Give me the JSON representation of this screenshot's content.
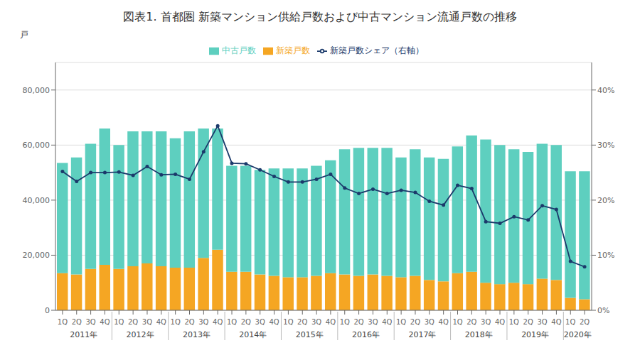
{
  "chart_data": {
    "type": "bar",
    "title": "図表1. 首都圏 新築マンション供給戸数および中古マンション流通戸数の推移",
    "ylabel": "戸",
    "categories": [
      "1Q",
      "2Q",
      "3Q",
      "4Q",
      "1Q",
      "2Q",
      "3Q",
      "4Q",
      "1Q",
      "2Q",
      "3Q",
      "4Q",
      "1Q",
      "2Q",
      "3Q",
      "4Q",
      "1Q",
      "2Q",
      "3Q",
      "4Q",
      "1Q",
      "2Q",
      "3Q",
      "4Q",
      "1Q",
      "2Q",
      "3Q",
      "4Q",
      "1Q",
      "2Q",
      "3Q",
      "4Q",
      "1Q",
      "2Q",
      "3Q",
      "4Q",
      "1Q",
      "2Q"
    ],
    "annotations": [
      "2011年",
      "2012年",
      "2013年",
      "2014年",
      "2015年",
      "2016年",
      "2017年",
      "2018年",
      "2019年",
      "2020年"
    ],
    "series": [
      {
        "name": "新築戸数",
        "type": "bar",
        "color": "#F5A623",
        "values": [
          13500,
          13000,
          15000,
          16500,
          15000,
          16000,
          17000,
          16000,
          15500,
          15500,
          19000,
          22000,
          14000,
          14000,
          13000,
          12500,
          12000,
          12000,
          12500,
          13500,
          13000,
          12500,
          13000,
          12500,
          12000,
          12500,
          11000,
          10500,
          13500,
          14000,
          10000,
          9500,
          10000,
          9500,
          11500,
          11000,
          4500,
          4000
        ]
      },
      {
        "name": "中古戸数",
        "type": "bar",
        "color": "#5ECFBF",
        "values": [
          40000,
          42500,
          45500,
          49500,
          45000,
          49000,
          48000,
          49000,
          47000,
          49500,
          47000,
          44000,
          38500,
          38500,
          38000,
          39000,
          39500,
          39500,
          40000,
          41000,
          45500,
          46500,
          46000,
          46500,
          43500,
          46000,
          44500,
          44500,
          46000,
          49500,
          52000,
          50500,
          48500,
          48000,
          49000,
          49000,
          46000,
          46500
        ]
      },
      {
        "name": "新築戸数シェア（右軸）",
        "type": "line",
        "axis": "y2",
        "marker": "circle",
        "color": "#1B3A6B",
        "values": [
          0.252,
          0.234,
          0.25,
          0.25,
          0.251,
          0.245,
          0.261,
          0.246,
          0.247,
          0.238,
          0.288,
          0.335,
          0.267,
          0.266,
          0.255,
          0.243,
          0.233,
          0.233,
          0.238,
          0.247,
          0.222,
          0.212,
          0.22,
          0.212,
          0.218,
          0.214,
          0.198,
          0.191,
          0.227,
          0.221,
          0.161,
          0.158,
          0.17,
          0.164,
          0.19,
          0.183,
          0.089,
          0.079
        ]
      }
    ],
    "stacked": true,
    "ylim": [
      0,
      90000
    ],
    "yticks": [
      0,
      {
        "value": 20000,
        "label": "20,000"
      },
      {
        "value": 40000,
        "label": "40,000"
      },
      {
        "value": 60000,
        "label": "60,000"
      },
      {
        "value": 80000,
        "label": "80,000"
      }
    ],
    "y2lim": [
      0,
      0.45
    ],
    "y2ticks": [
      {
        "value": 0,
        "label": "0%"
      },
      {
        "value": 0.1,
        "label": "10%"
      },
      {
        "value": 0.2,
        "label": "20%"
      },
      {
        "value": 0.3,
        "label": "30%"
      },
      {
        "value": 0.4,
        "label": "40%"
      }
    ],
    "grid": true,
    "legend": "top"
  }
}
